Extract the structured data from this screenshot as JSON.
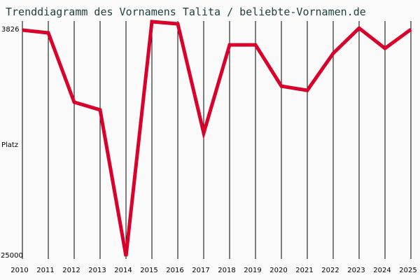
{
  "title": "Trenddiagramm des Vornamens Talita / beliebte-Vornamen.de",
  "y_axis": {
    "top_label": "3826",
    "middle_label": "Platz",
    "bottom_label": "25000"
  },
  "colors": {
    "line": "#d9002a",
    "background": "#fafafa",
    "grid": "#000000",
    "title": "#1e4040"
  },
  "chart_data": {
    "type": "line",
    "title": "Trenddiagramm des Vornamens Talita / beliebte-Vornamen.de",
    "xlabel": "",
    "ylabel": "Platz",
    "ylim": [
      25000,
      3826
    ],
    "y_inverted": true,
    "grid": "vertical",
    "categories": [
      "2010",
      "2011",
      "2012",
      "2013",
      "2014",
      "2015",
      "2016",
      "2017",
      "2018",
      "2019",
      "2020",
      "2021",
      "2022",
      "2023",
      "2024",
      "2025"
    ],
    "series": [
      {
        "name": "Talita",
        "values": [
          3826,
          4090,
          10580,
          11300,
          25000,
          3040,
          3240,
          13470,
          5210,
          5210,
          9080,
          9470,
          6000,
          3640,
          5540,
          3760
        ]
      }
    ]
  }
}
